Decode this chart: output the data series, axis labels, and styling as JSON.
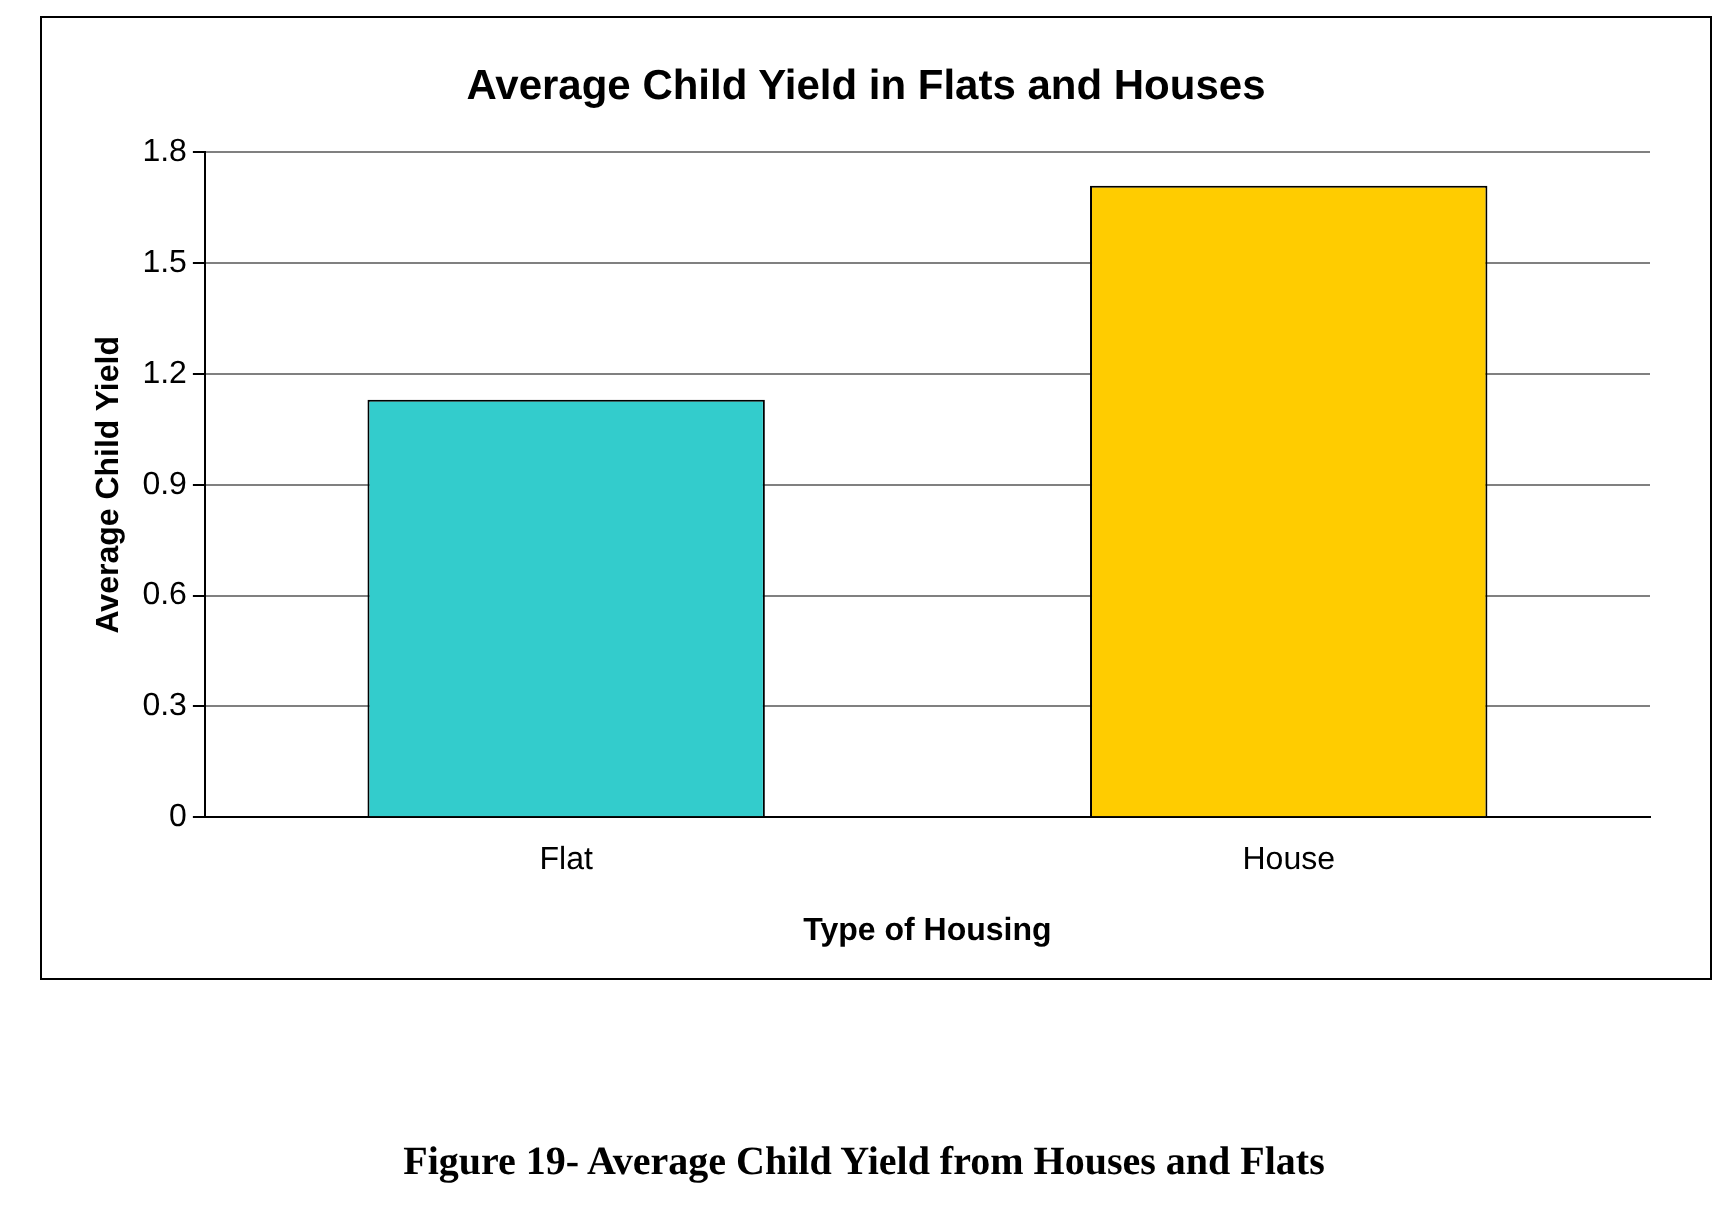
{
  "chart_data": {
    "type": "bar",
    "title": "Average Child Yield in Flats and Houses",
    "xlabel": "Type of Housing",
    "ylabel": "Average Child Yield",
    "categories": [
      "Flat",
      "House"
    ],
    "values": [
      1.13,
      1.71
    ],
    "colors": [
      "#33cccc",
      "#ffcc00"
    ],
    "ylim": [
      0,
      1.8
    ],
    "yticks": [
      0,
      0.3,
      0.6,
      0.9,
      1.2,
      1.5,
      1.8
    ],
    "grid": "y",
    "legend": false,
    "annotations": [
      "Figure 19- Average Child Yield from Houses and Flats"
    ]
  }
}
